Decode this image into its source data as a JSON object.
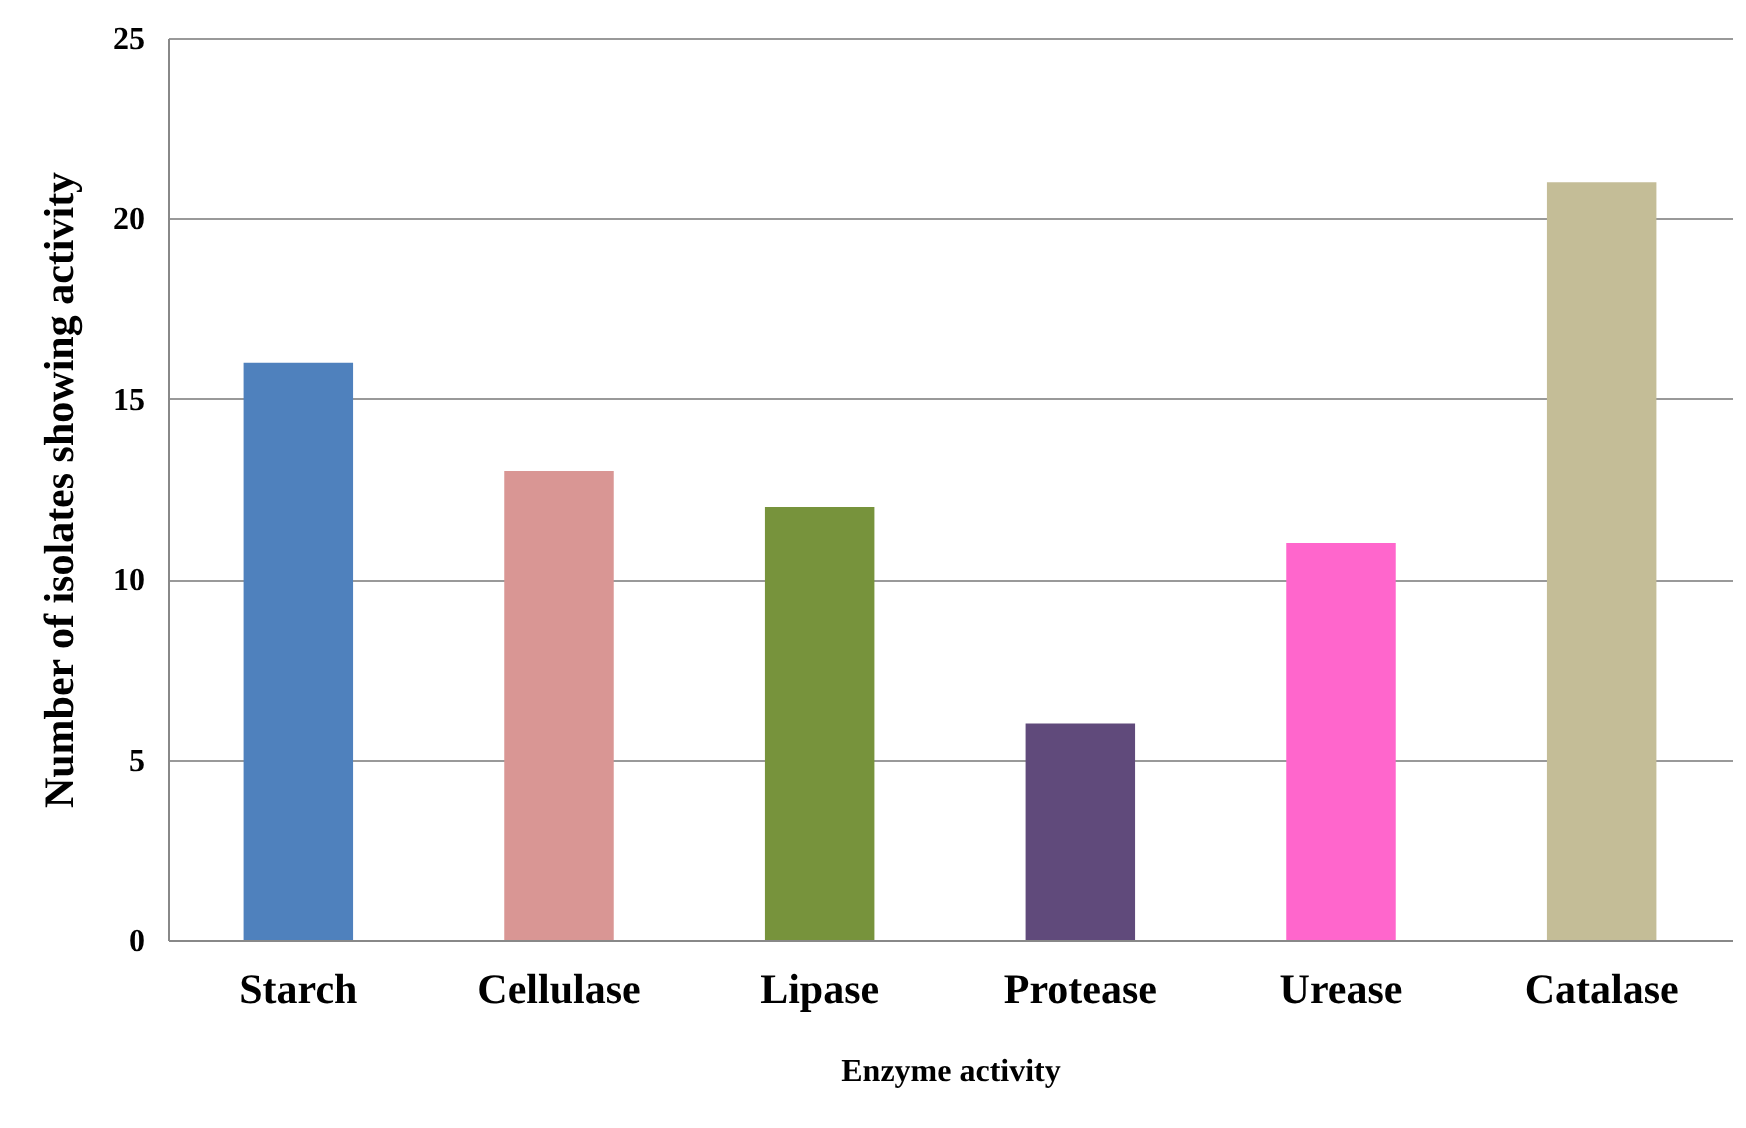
{
  "chart_data": {
    "type": "bar",
    "xlabel": "Enzyme activity",
    "ylabel": "Number of isolates showing activity",
    "categories": [
      "Starch",
      "Cellulase",
      "Lipase",
      "Protease",
      "Urease",
      "Catalase"
    ],
    "values": [
      16,
      13,
      12,
      6,
      11,
      21
    ],
    "colors": [
      "#4f81bd",
      "#d99694",
      "#77933c",
      "#604a7b",
      "#ff66cc",
      "#c4bd97"
    ],
    "ylim": [
      0,
      25
    ],
    "yticks": [
      0,
      5,
      10,
      15,
      20,
      25
    ],
    "grid": "y",
    "legend": false
  }
}
